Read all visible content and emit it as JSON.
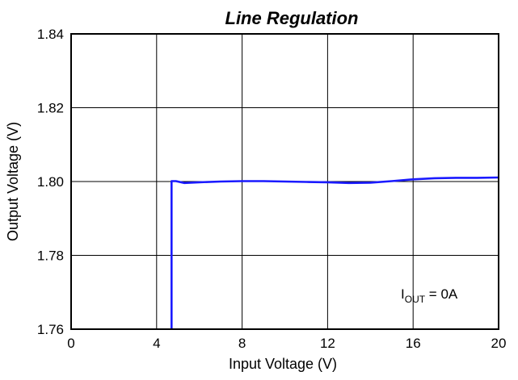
{
  "chart_data": {
    "type": "line",
    "title": "Line Regulation",
    "xlabel": "Input Voltage (V)",
    "ylabel": "Output Voltage (V)",
    "xlim": [
      0,
      20
    ],
    "ylim": [
      1.76,
      1.84
    ],
    "xticks": [
      0,
      4,
      8,
      12,
      16,
      20
    ],
    "xtick_labels": [
      "0",
      "4",
      "8",
      "12",
      "16",
      "20"
    ],
    "yticks": [
      1.76,
      1.78,
      1.8,
      1.82,
      1.84
    ],
    "ytick_labels": [
      "1.76",
      "1.78",
      "1.80",
      "1.82",
      "1.84"
    ],
    "grid": true,
    "annotation": {
      "main": "I",
      "subscript": "OUT",
      "suffix": " = 0A"
    },
    "series": [
      {
        "color": "#1a1aff",
        "x": [
          4.7,
          4.7,
          4.9,
          5.3,
          6,
          7,
          8,
          9,
          10,
          11,
          12,
          13,
          14,
          15,
          16,
          17,
          18,
          19,
          20
        ],
        "y": [
          1.7598,
          1.8001,
          1.8001,
          1.7996,
          1.7998,
          1.8,
          1.8001,
          1.8001,
          1.8,
          1.7999,
          1.7998,
          1.7996,
          1.7997,
          1.8001,
          1.8006,
          1.8009,
          1.801,
          1.801,
          1.8011
        ]
      }
    ]
  }
}
